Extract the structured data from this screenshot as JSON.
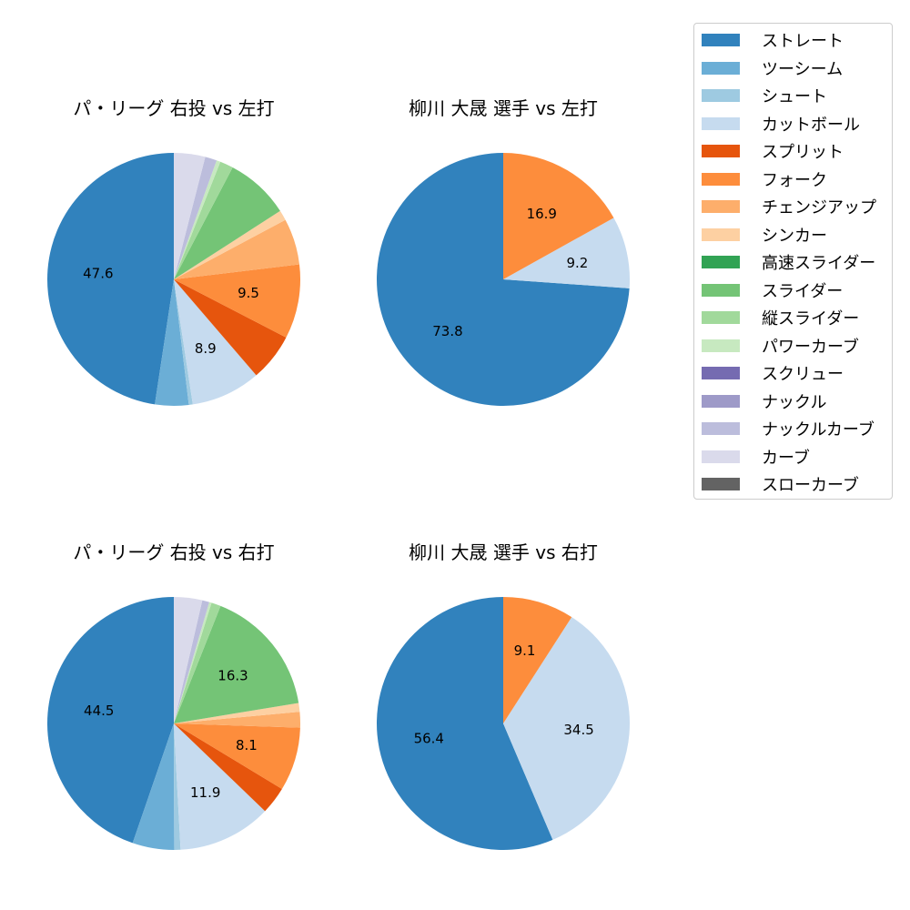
{
  "legend": {
    "items": [
      {
        "label": "ストレート",
        "color": "#3182bd"
      },
      {
        "label": "ツーシーム",
        "color": "#6baed6"
      },
      {
        "label": "シュート",
        "color": "#9ecae1"
      },
      {
        "label": "カットボール",
        "color": "#c6dbef"
      },
      {
        "label": "スプリット",
        "color": "#e6550d"
      },
      {
        "label": "フォーク",
        "color": "#fd8d3c"
      },
      {
        "label": "チェンジアップ",
        "color": "#fdae6b"
      },
      {
        "label": "シンカー",
        "color": "#fdd0a2"
      },
      {
        "label": "高速スライダー",
        "color": "#31a354"
      },
      {
        "label": "スライダー",
        "color": "#74c476"
      },
      {
        "label": "縦スライダー",
        "color": "#a1d99b"
      },
      {
        "label": "パワーカーブ",
        "color": "#c7e9c0"
      },
      {
        "label": "スクリュー",
        "color": "#756bb1"
      },
      {
        "label": "ナックル",
        "color": "#9e9ac8"
      },
      {
        "label": "ナックルカーブ",
        "color": "#bcbddc"
      },
      {
        "label": "カーブ",
        "color": "#dadaeb"
      },
      {
        "label": "スローカーブ",
        "color": "#636363"
      }
    ]
  },
  "chart_data": [
    {
      "type": "pie",
      "title": "パ・リーグ 右投 vs 左打",
      "categories": [
        "ストレート",
        "ツーシーム",
        "シュート",
        "カットボール",
        "スプリット",
        "フォーク",
        "チェンジアップ",
        "シンカー",
        "スライダー",
        "縦スライダー",
        "パワーカーブ",
        "ナックルカーブ",
        "カーブ"
      ],
      "values": [
        47.6,
        4.3,
        0.5,
        8.9,
        6.1,
        9.5,
        5.9,
        1.3,
        8.2,
        1.7,
        0.5,
        1.5,
        4.0
      ],
      "labels_shown": [
        "47.6",
        "",
        "",
        "8.9",
        "",
        "9.5",
        "",
        "",
        "",
        "",
        "",
        "",
        ""
      ],
      "start_angle": 90,
      "direction": "counterclockwise"
    },
    {
      "type": "pie",
      "title": "柳川 大晟 選手 vs 左打",
      "categories": [
        "ストレート",
        "カットボール",
        "フォーク"
      ],
      "values": [
        73.8,
        9.2,
        16.9
      ],
      "labels_shown": [
        "73.8",
        "9.2",
        "16.9"
      ],
      "start_angle": 90,
      "direction": "counterclockwise"
    },
    {
      "type": "pie",
      "title": "パ・リーグ 右投 vs 右打",
      "categories": [
        "ストレート",
        "ツーシーム",
        "シュート",
        "カットボール",
        "スプリット",
        "フォーク",
        "チェンジアップ",
        "シンカー",
        "スライダー",
        "縦スライダー",
        "パワーカーブ",
        "ナックルカーブ",
        "カーブ"
      ],
      "values": [
        44.5,
        5.3,
        0.8,
        11.9,
        3.5,
        8.1,
        2.0,
        1.1,
        16.3,
        1.2,
        0.3,
        0.9,
        3.6
      ],
      "labels_shown": [
        "44.5",
        "",
        "",
        "11.9",
        "",
        "8.1",
        "",
        "",
        "16.3",
        "",
        "",
        "",
        ""
      ],
      "start_angle": 90,
      "direction": "counterclockwise"
    },
    {
      "type": "pie",
      "title": "柳川 大晟 選手 vs 右打",
      "categories": [
        "ストレート",
        "カットボール",
        "フォーク"
      ],
      "values": [
        56.4,
        34.5,
        9.1
      ],
      "labels_shown": [
        "56.4",
        "34.5",
        "9.1"
      ],
      "start_angle": 90,
      "direction": "counterclockwise"
    }
  ]
}
